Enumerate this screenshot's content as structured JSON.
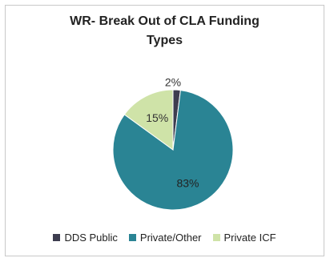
{
  "chart_data": {
    "type": "pie",
    "title_line1": "WR-  Break Out of CLA Funding",
    "title_line2": "Types",
    "slices": [
      {
        "label": "DDS Public",
        "value": 2,
        "display": "2%",
        "color": "#3d3d4f"
      },
      {
        "label": "Private/Other",
        "value": 83,
        "display": "83%",
        "color": "#2a8494"
      },
      {
        "label": "Private ICF",
        "value": 15,
        "display": "15%",
        "color": "#cfe3a8"
      }
    ],
    "legend_position": "bottom"
  }
}
